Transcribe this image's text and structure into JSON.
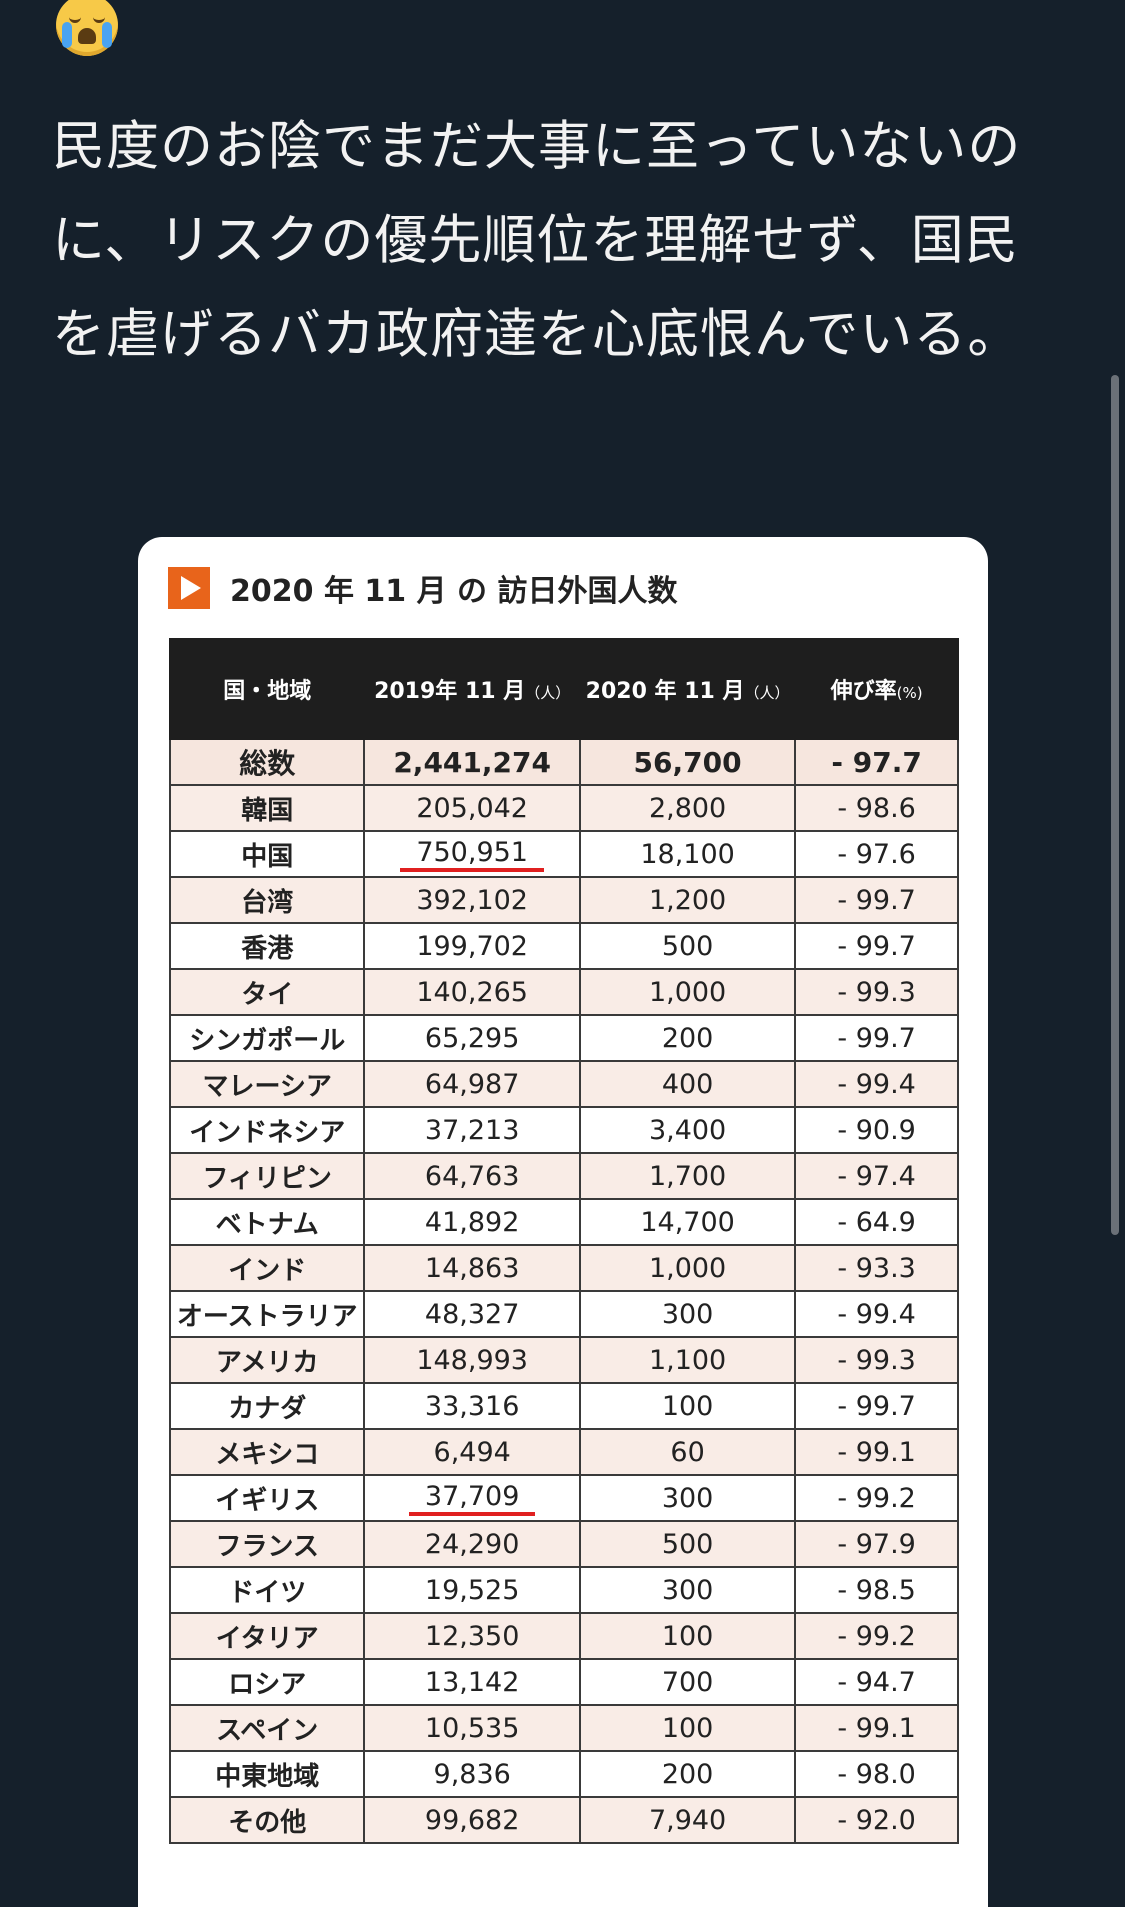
{
  "tweet": {
    "emoji_icon": "loudly-crying-face",
    "text": "民度のお陰でまだ大事に至っていないのに、リスクの優先順位を理解せず、国民を虐げるバカ政府達を心底恨んでいる。"
  },
  "card": {
    "title": "2020 年 11 月 の 訪日外国人数",
    "accent_color": "#e8641b",
    "table": {
      "headers": [
        {
          "label": "国・地域",
          "unit": ""
        },
        {
          "label": "2019年 11 月",
          "unit": "（人）"
        },
        {
          "label": "2020 年 11 月",
          "unit": "（人）"
        },
        {
          "label": "伸び率",
          "unit": "(%)"
        }
      ],
      "total": {
        "country": "総数",
        "y2019": "2,441,274",
        "y2020": "56,700",
        "rate": "- 97.7"
      },
      "rows": [
        {
          "country": "韓国",
          "y2019": "205,042",
          "y2020": "2,800",
          "rate": "- 98.6"
        },
        {
          "country": "中国",
          "y2019": "750,951",
          "y2020": "18,100",
          "rate": "- 97.6"
        },
        {
          "country": "台湾",
          "y2019": "392,102",
          "y2020": "1,200",
          "rate": "- 99.7"
        },
        {
          "country": "香港",
          "y2019": "199,702",
          "y2020": "500",
          "rate": "- 99.7"
        },
        {
          "country": "タイ",
          "y2019": "140,265",
          "y2020": "1,000",
          "rate": "- 99.3"
        },
        {
          "country": "シンガポール",
          "y2019": "65,295",
          "y2020": "200",
          "rate": "- 99.7"
        },
        {
          "country": "マレーシア",
          "y2019": "64,987",
          "y2020": "400",
          "rate": "- 99.4"
        },
        {
          "country": "インドネシア",
          "y2019": "37,213",
          "y2020": "3,400",
          "rate": "- 90.9"
        },
        {
          "country": "フィリピン",
          "y2019": "64,763",
          "y2020": "1,700",
          "rate": "- 97.4"
        },
        {
          "country": "ベトナム",
          "y2019": "41,892",
          "y2020": "14,700",
          "rate": "- 64.9"
        },
        {
          "country": "インド",
          "y2019": "14,863",
          "y2020": "1,000",
          "rate": "- 93.3"
        },
        {
          "country": "オーストラリア",
          "y2019": "48,327",
          "y2020": "300",
          "rate": "- 99.4"
        },
        {
          "country": "アメリカ",
          "y2019": "148,993",
          "y2020": "1,100",
          "rate": "- 99.3"
        },
        {
          "country": "カナダ",
          "y2019": "33,316",
          "y2020": "100",
          "rate": "- 99.7"
        },
        {
          "country": "メキシコ",
          "y2019": "6,494",
          "y2020": "60",
          "rate": "- 99.1"
        },
        {
          "country": "イギリス",
          "y2019": "37,709",
          "y2020": "300",
          "rate": "- 99.2"
        },
        {
          "country": "フランス",
          "y2019": "24,290",
          "y2020": "500",
          "rate": "- 97.9"
        },
        {
          "country": "ドイツ",
          "y2019": "19,525",
          "y2020": "300",
          "rate": "- 98.5"
        },
        {
          "country": "イタリア",
          "y2019": "12,350",
          "y2020": "100",
          "rate": "- 99.2"
        },
        {
          "country": "ロシア",
          "y2019": "13,142",
          "y2020": "700",
          "rate": "- 94.7"
        },
        {
          "country": "スペイン",
          "y2019": "10,535",
          "y2020": "100",
          "rate": "- 99.1"
        },
        {
          "country": "中東地域",
          "y2019": "9,836",
          "y2020": "200",
          "rate": "- 98.0"
        },
        {
          "country": "その他",
          "y2019": "99,682",
          "y2020": "7,940",
          "rate": "- 92.0"
        }
      ],
      "underlined_countries": [
        "中国",
        "イギリス"
      ],
      "underline_color": "#e02020"
    }
  }
}
